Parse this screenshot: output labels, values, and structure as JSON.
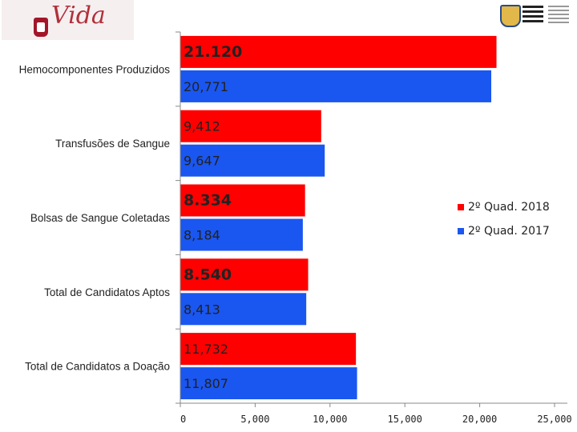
{
  "chart_data": {
    "type": "bar",
    "orientation": "horizontal",
    "categories": [
      "Hemocomponentes Produzidos",
      "Transfusões de Sangue",
      "Bolsas de Sangue Coletadas",
      "Total de Candidatos Aptos",
      "Total de Candidatos a Doação"
    ],
    "series": [
      {
        "name": "2º Quad. 2018",
        "color": "#ff0000",
        "values": [
          21120,
          9412,
          8334,
          8540,
          11732
        ],
        "labels": [
          "21.120",
          "9,412",
          "8.334",
          "8.540",
          "11,732"
        ],
        "label_bold": [
          true,
          false,
          true,
          true,
          false
        ]
      },
      {
        "name": "2º Quad. 2017",
        "color": "#1a56f0",
        "values": [
          20771,
          9647,
          8184,
          8413,
          11807
        ],
        "labels": [
          "20,771",
          "9,647",
          "8,184",
          "8,413",
          "11,807"
        ],
        "label_bold": [
          false,
          false,
          false,
          false,
          false
        ]
      }
    ],
    "x_ticks": [
      0,
      5000,
      10000,
      15000,
      20000,
      25000
    ],
    "x_tick_labels": [
      "0",
      "5,000",
      "10,000",
      "15,000",
      "20,000",
      "25,000"
    ],
    "xlim": [
      0,
      25000
    ],
    "legend_position": "right",
    "grid": false
  },
  "logos": {
    "left_text": "Vida",
    "right_icon": "state-government-crest-icon"
  }
}
